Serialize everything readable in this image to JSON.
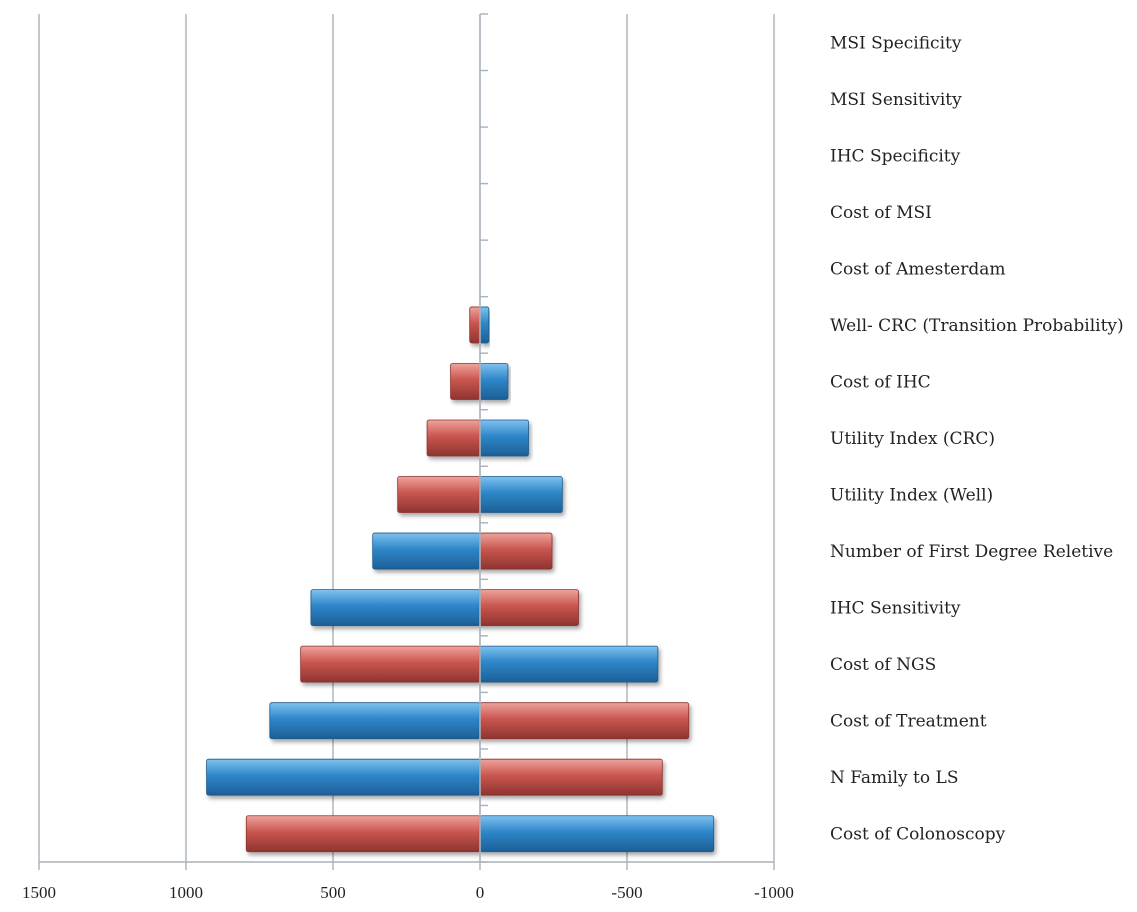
{
  "chart_data": {
    "type": "bar",
    "orientation": "horizontal",
    "x_axis_reversed": true,
    "xlim": [
      1500,
      -1000
    ],
    "x_ticks": [
      1500,
      1000,
      500,
      0,
      -500,
      -1000
    ],
    "x_tick_labels": [
      "1500",
      "1000",
      "500",
      "0",
      "-500",
      "-1000"
    ],
    "grid": "vertical",
    "label_position": "right",
    "title": "",
    "xlabel": "",
    "ylabel": "",
    "colors": {
      "blue": "#2e86c9",
      "red": "#c9564f",
      "grid": "#a9b1b9",
      "axis": "#a9b1b9"
    },
    "categories": [
      {
        "label": "MSI Specificity",
        "left_value": 0,
        "left_color": "blue",
        "right_value": 0,
        "right_color": "red"
      },
      {
        "label": "MSI Sensitivity",
        "left_value": 0,
        "left_color": "red",
        "right_value": 0,
        "right_color": "blue"
      },
      {
        "label": "IHC Specificity",
        "left_value": 0,
        "left_color": "red",
        "right_value": 0,
        "right_color": "blue"
      },
      {
        "label": "Cost of MSI",
        "left_value": 0,
        "left_color": "red",
        "right_value": 0,
        "right_color": "blue"
      },
      {
        "label": "Cost of Amesterdam",
        "left_value": 0,
        "left_color": "red",
        "right_value": 0,
        "right_color": "blue"
      },
      {
        "label": "Well- CRC (Transition Probability)",
        "left_value": 35,
        "left_color": "red",
        "right_value": -30,
        "right_color": "blue"
      },
      {
        "label": "Cost of IHC",
        "left_value": 100,
        "left_color": "red",
        "right_value": -95,
        "right_color": "blue"
      },
      {
        "label": "Utility Index (CRC)",
        "left_value": 180,
        "left_color": "red",
        "right_value": -165,
        "right_color": "blue"
      },
      {
        "label": "Utility Index (Well)",
        "left_value": 280,
        "left_color": "red",
        "right_value": -280,
        "right_color": "blue"
      },
      {
        "label": "Number of First Degree Reletive",
        "left_value": 365,
        "left_color": "blue",
        "right_value": -245,
        "right_color": "red"
      },
      {
        "label": "IHC Sensitivity",
        "left_value": 575,
        "left_color": "blue",
        "right_value": -335,
        "right_color": "red"
      },
      {
        "label": "Cost of NGS",
        "left_value": 610,
        "left_color": "red",
        "right_value": -605,
        "right_color": "blue"
      },
      {
        "label": "Cost of Treatment",
        "left_value": 715,
        "left_color": "blue",
        "right_value": -710,
        "right_color": "red"
      },
      {
        "label": "N Family to LS",
        "left_value": 930,
        "left_color": "blue",
        "right_value": -620,
        "right_color": "red"
      },
      {
        "label": "Cost of Colonoscopy",
        "left_value": 795,
        "left_color": "red",
        "right_value": -795,
        "right_color": "blue"
      }
    ]
  }
}
